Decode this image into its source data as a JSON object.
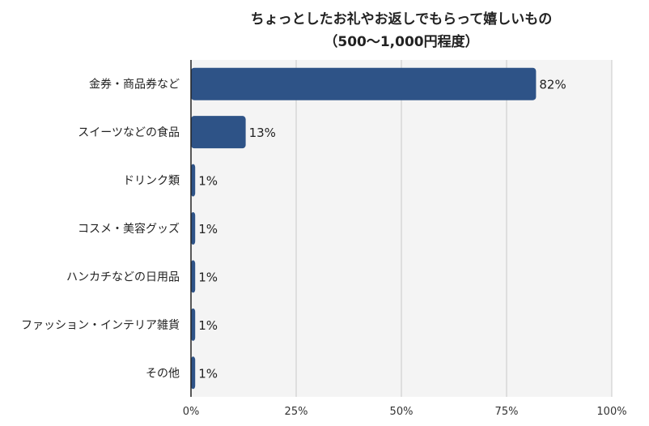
{
  "chart_data": {
    "type": "bar",
    "orientation": "horizontal",
    "title": "ちょっとしたお礼やお返しでもらって嬉しいもの",
    "subtitle": "（500〜1,000円程度）",
    "categories": [
      "金券・商品券など",
      "スイーツなどの食品",
      "ドリンク類",
      "コスメ・美容グッズ",
      "ハンカチなどの日用品",
      "ファッション・インテリア雑貨",
      "その他"
    ],
    "values": [
      82,
      13,
      1,
      1,
      1,
      1,
      1
    ],
    "value_labels": [
      "82%",
      "13%",
      "1%",
      "1%",
      "1%",
      "1%",
      "1%"
    ],
    "xlim": [
      0,
      100
    ],
    "xticks": [
      "0%",
      "25%",
      "50%",
      "75%",
      "100%"
    ],
    "xlabel": "",
    "ylabel": "",
    "grid": true,
    "colors": {
      "bar": "#2e5387",
      "plot_bg": "#f4f4f4",
      "grid": "#c8c8c8",
      "axis": "#222222"
    }
  }
}
